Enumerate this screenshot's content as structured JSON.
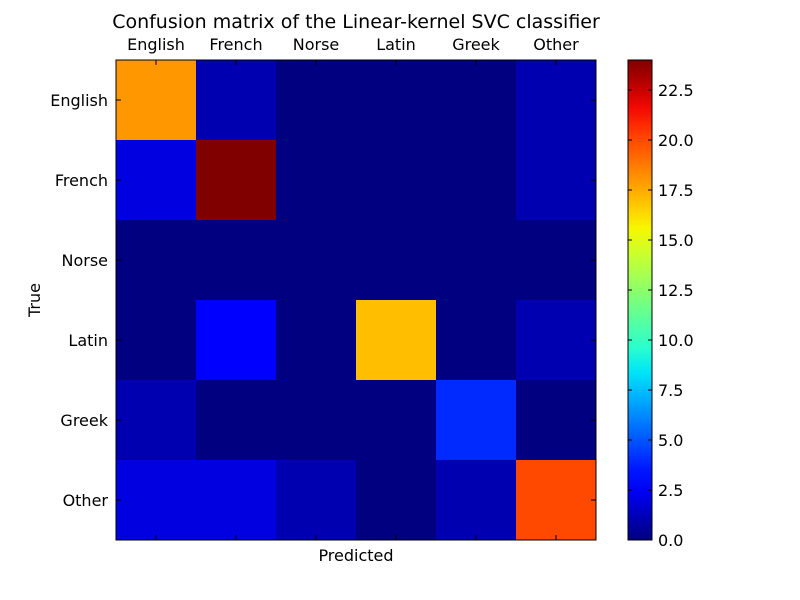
{
  "chart_data": {
    "type": "heatmap",
    "title": "Confusion matrix of the Linear-kernel SVC classifier",
    "xlabel": "Predicted",
    "ylabel": "True",
    "x_categories": [
      "English",
      "French",
      "Norse",
      "Latin",
      "Greek",
      "Other"
    ],
    "y_categories": [
      "English",
      "French",
      "Norse",
      "Latin",
      "Greek",
      "Other"
    ],
    "values": [
      [
        18,
        1,
        0,
        0,
        0,
        1
      ],
      [
        2,
        24,
        0,
        0,
        0,
        1
      ],
      [
        0,
        0,
        0,
        0,
        0,
        0
      ],
      [
        0,
        3,
        0,
        17,
        0,
        1
      ],
      [
        1,
        0,
        0,
        0,
        4,
        0
      ],
      [
        2,
        2,
        1,
        0,
        1,
        20
      ]
    ],
    "vmin": 0,
    "vmax": 24,
    "colormap": "jet",
    "colorbar_ticks": [
      "0.0",
      "2.5",
      "5.0",
      "7.5",
      "10.0",
      "12.5",
      "15.0",
      "17.5",
      "20.0",
      "22.5"
    ],
    "grid": false
  }
}
